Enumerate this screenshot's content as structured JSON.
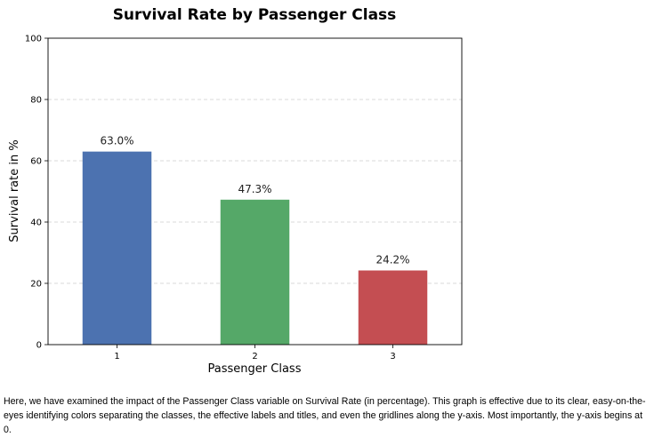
{
  "chart_data": {
    "type": "bar",
    "title": "Survival Rate by Passenger Class",
    "xlabel": "Passenger Class",
    "ylabel": "Survival rate in %",
    "categories": [
      "1",
      "2",
      "3"
    ],
    "values": [
      63.0,
      47.3,
      24.2
    ],
    "data_labels": [
      "63.0%",
      "47.3%",
      "24.2%"
    ],
    "colors": [
      "#4c72b0",
      "#55a868",
      "#c44e52"
    ],
    "ylim": [
      0,
      100
    ],
    "yticks": [
      "0",
      "20",
      "40",
      "60",
      "80",
      "100"
    ],
    "grid": "y-axis dashed",
    "legend": "none"
  },
  "caption": "Here, we have examined the impact of the Passenger Class variable on Survival Rate (in percentage). This graph is effective due to its clear, easy-on-the-eyes identifying colors separating the classes, the effective labels and titles, and even the gridlines along the y-axis. Most importantly, the y-axis begins at 0."
}
